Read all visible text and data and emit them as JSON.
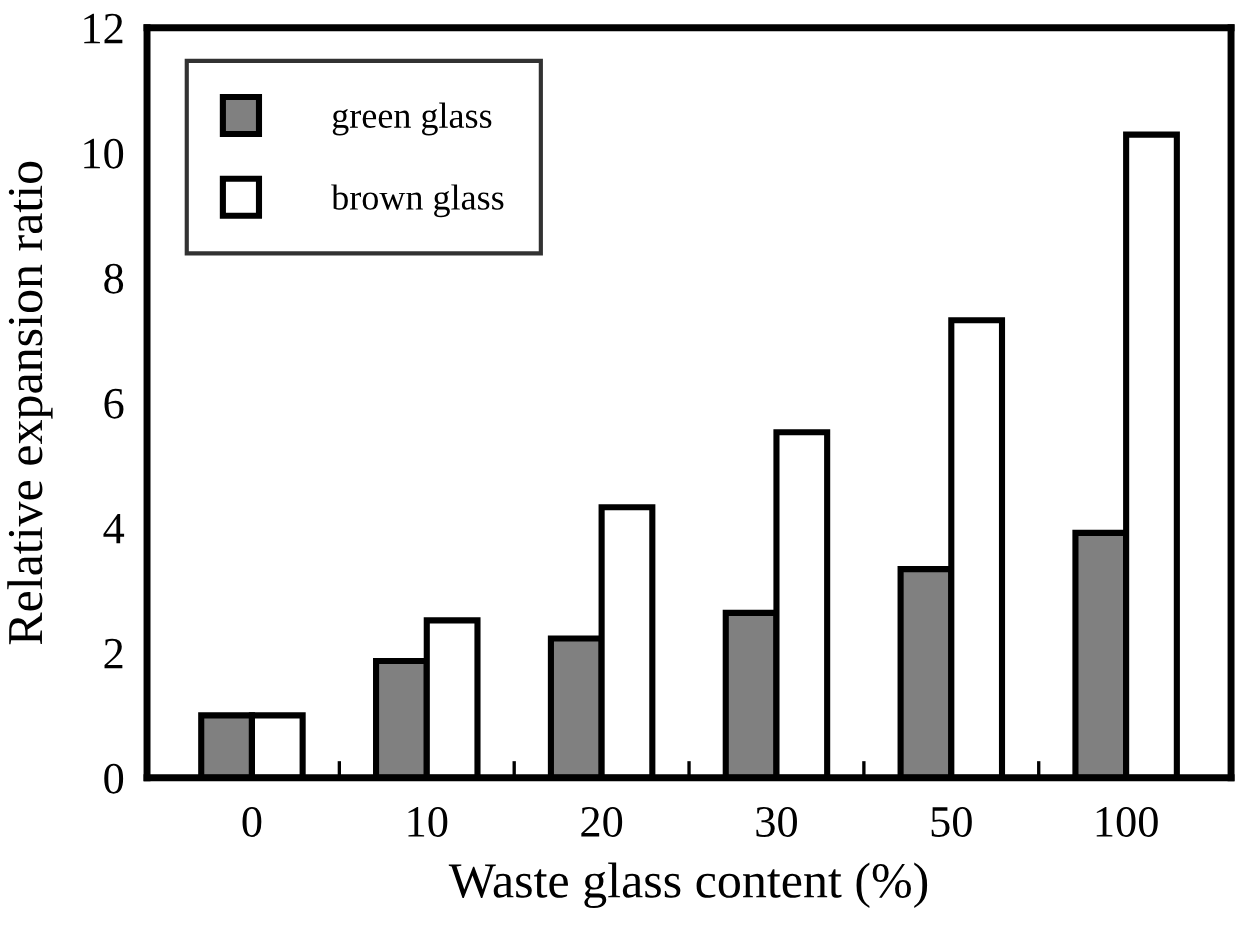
{
  "chart_data": {
    "type": "bar",
    "xlabel": "Waste glass content (%)",
    "ylabel": "Relative expansion ratio",
    "categories": [
      "0",
      "10",
      "20",
      "30",
      "50",
      "100"
    ],
    "series": [
      {
        "name": "green glass",
        "color": "#808080",
        "values": [
          1.0,
          1.87,
          2.23,
          2.64,
          3.34,
          3.92
        ]
      },
      {
        "name": "brown glass",
        "color": "#ffffff",
        "values": [
          1.0,
          2.52,
          4.33,
          5.53,
          7.32,
          10.29
        ]
      }
    ],
    "ylim": [
      0,
      12
    ],
    "yticks": [
      0,
      2,
      4,
      6,
      8,
      10,
      12
    ],
    "grid": false,
    "legend": "top left"
  }
}
